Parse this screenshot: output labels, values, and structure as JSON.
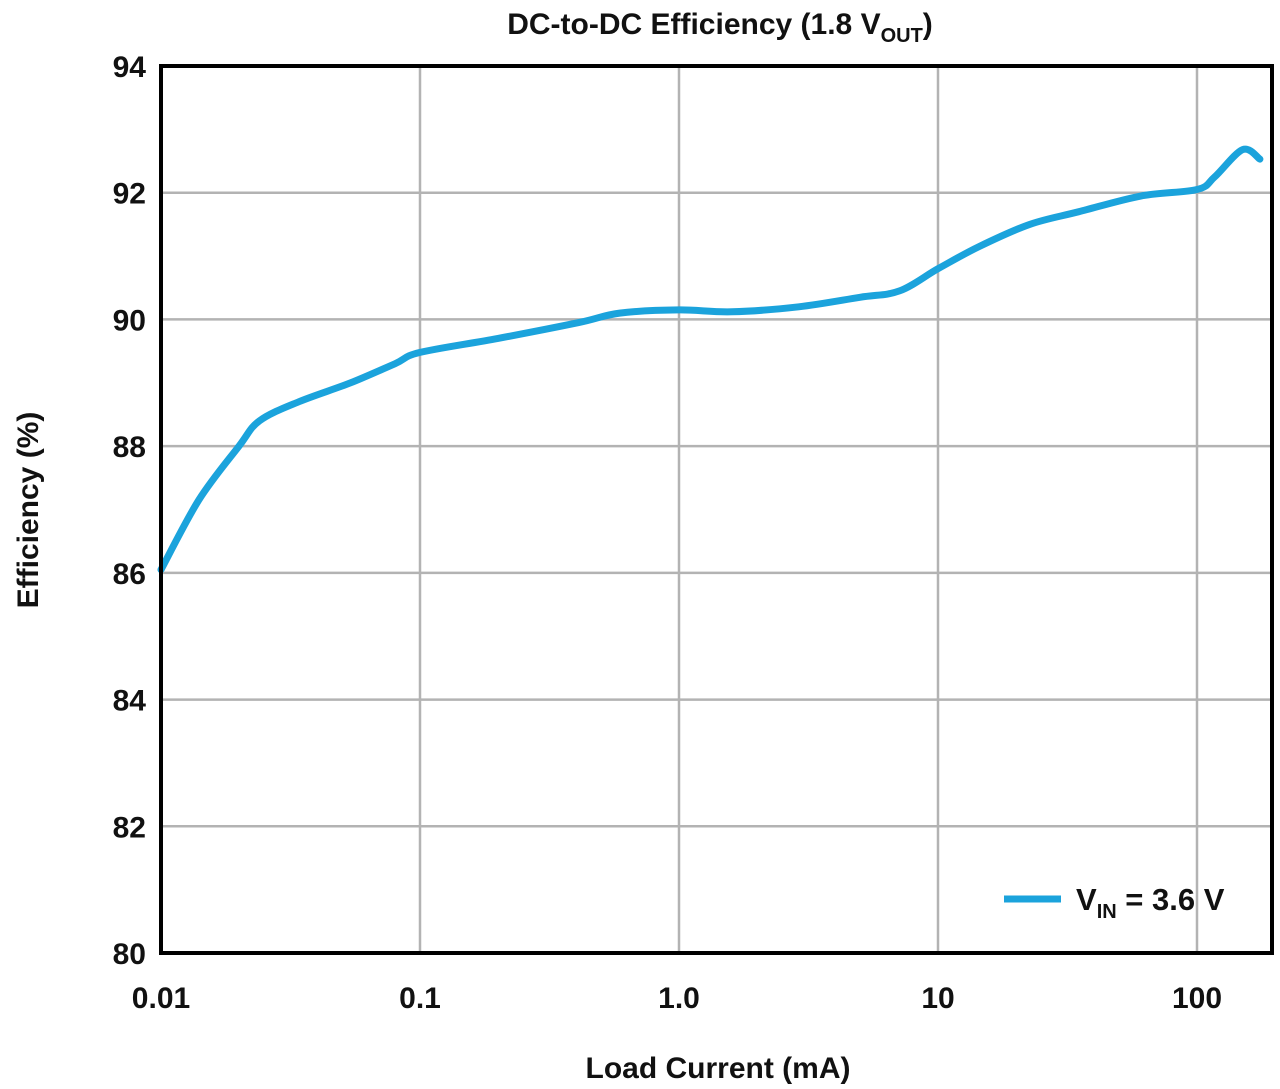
{
  "chart_data": {
    "type": "line",
    "title": {
      "main": "DC-to-DC Efficiency (1.8 V",
      "subscript": "OUT",
      "suffix": ")"
    },
    "xlabel": "Load Current (mA)",
    "ylabel": "Efficiency (%)",
    "xscale": "log",
    "xlim": [
      0.01,
      195
    ],
    "ylim": [
      80,
      94
    ],
    "xticks": [
      0.01,
      0.1,
      1,
      10,
      100
    ],
    "xtick_labels": [
      "0.01",
      "0.1",
      "1.0",
      "10",
      "100"
    ],
    "yticks": [
      80,
      82,
      84,
      86,
      88,
      90,
      92,
      94
    ],
    "ytick_labels": [
      "80",
      "82",
      "84",
      "86",
      "88",
      "90",
      "92",
      "94"
    ],
    "grid": true,
    "legend_position": "bottom-right",
    "series": [
      {
        "name": "VIN = 3.6 V",
        "legend": {
          "main": "V",
          "subscript": "IN",
          "suffix": " = 3.6 V"
        },
        "color": "#1ba3dc",
        "x": [
          0.01,
          0.014,
          0.02,
          0.024,
          0.034,
          0.054,
          0.08,
          0.1,
          0.2,
          0.41,
          0.59,
          1.0,
          1.6,
          2.9,
          5.0,
          7.1,
          10,
          14.4,
          22.6,
          35,
          61,
          100,
          117,
          150,
          175
        ],
        "y": [
          86.05,
          87.15,
          88.0,
          88.4,
          88.7,
          89.0,
          89.3,
          89.48,
          89.7,
          89.95,
          90.1,
          90.15,
          90.12,
          90.2,
          90.35,
          90.45,
          90.8,
          91.15,
          91.5,
          91.7,
          91.95,
          92.05,
          92.25,
          92.68,
          92.53
        ]
      }
    ]
  }
}
